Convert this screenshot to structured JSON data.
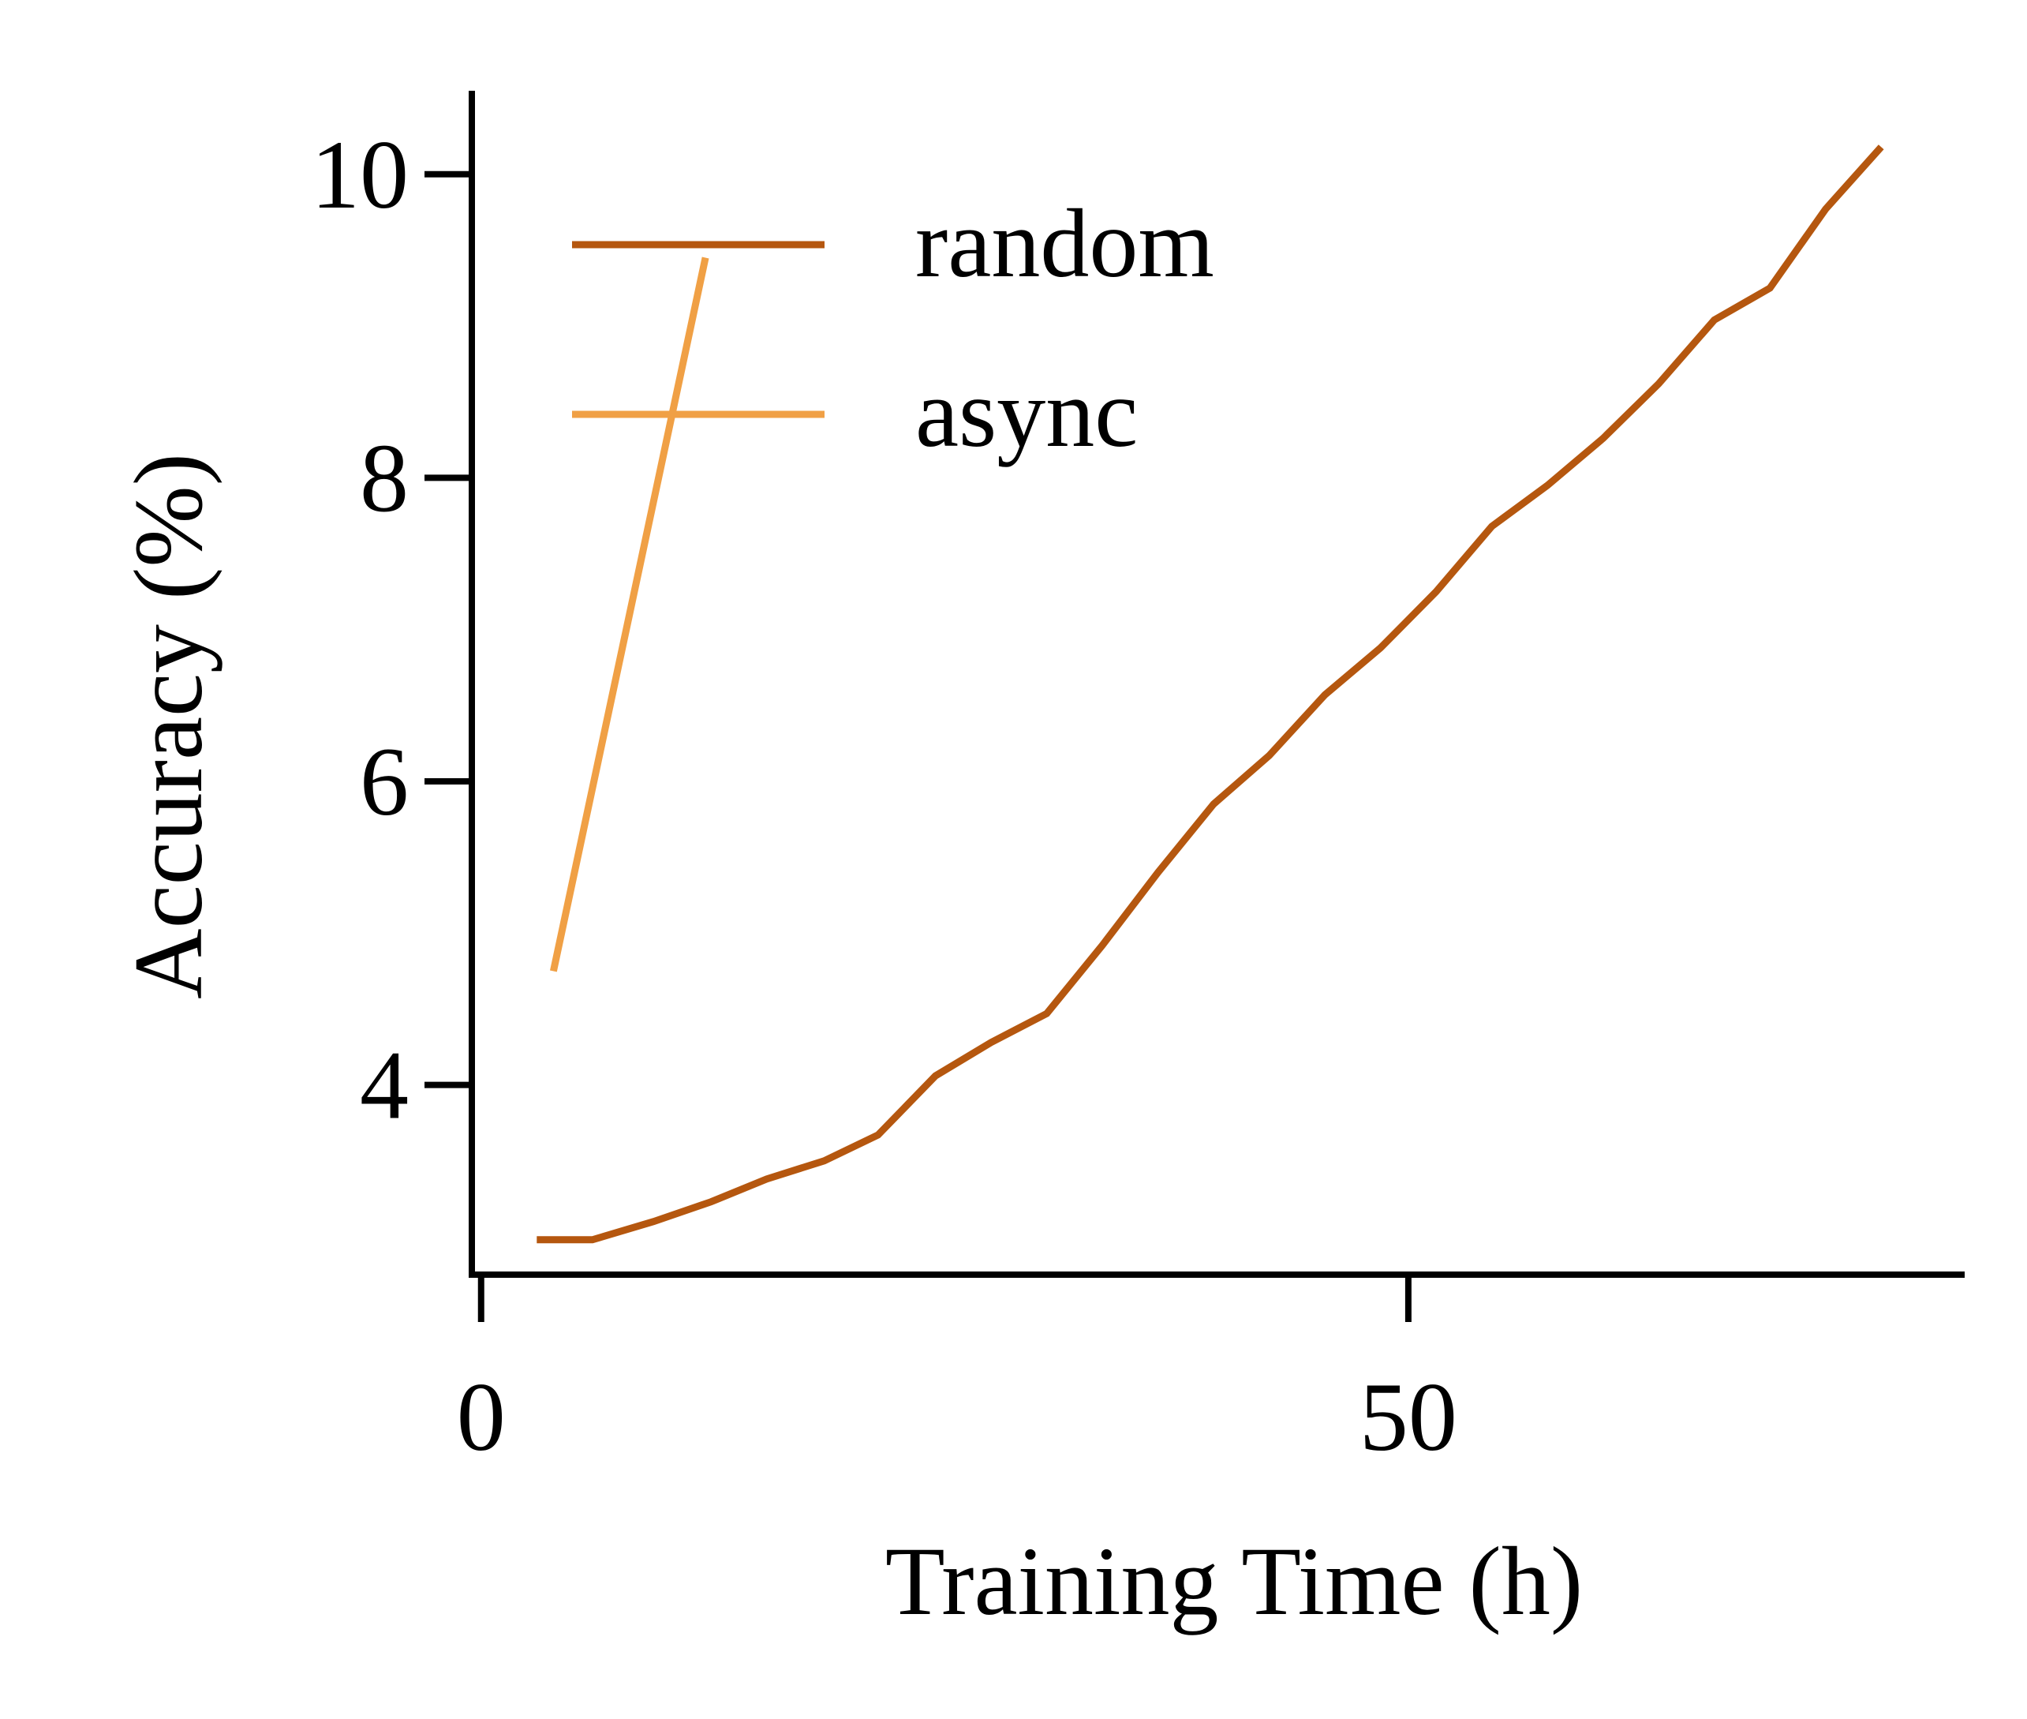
{
  "chart_data": {
    "type": "line",
    "title": "",
    "xlabel": "Training Time (h)",
    "ylabel": "Accuracy (%)",
    "xlim": [
      -0.5,
      80
    ],
    "ylim": [
      2.75,
      10.55
    ],
    "xticks": [
      0,
      50
    ],
    "xtick_labels": [
      "0",
      "50"
    ],
    "yticks": [
      4,
      6,
      8,
      10
    ],
    "ytick_labels": [
      "4",
      "6",
      "8",
      "10"
    ],
    "grid": false,
    "legend": {
      "position": "top-left",
      "entries": [
        "random",
        "async"
      ]
    },
    "series": [
      {
        "name": "random",
        "color": "#b5570f",
        "x": [
          3,
          6,
          9.3,
          12.4,
          15.4,
          18.5,
          21.4,
          24.5,
          27.5,
          30.5,
          33.5,
          36.5,
          39.5,
          42.5,
          45.5,
          48.5,
          51.5,
          54.5,
          57.5,
          60.5,
          63.5,
          66.5,
          69.5,
          72.5,
          75.5
        ],
        "y": [
          2.98,
          2.98,
          3.1,
          3.23,
          3.38,
          3.5,
          3.67,
          4.06,
          4.28,
          4.47,
          4.92,
          5.4,
          5.85,
          6.17,
          6.57,
          6.88,
          7.25,
          7.68,
          7.95,
          8.26,
          8.62,
          9.04,
          9.25,
          9.77,
          10.18
        ]
      },
      {
        "name": "async",
        "color": "#f0a045",
        "x": [
          3.9,
          8,
          12.1
        ],
        "y": [
          4.75,
          7.1,
          9.45
        ]
      }
    ]
  }
}
